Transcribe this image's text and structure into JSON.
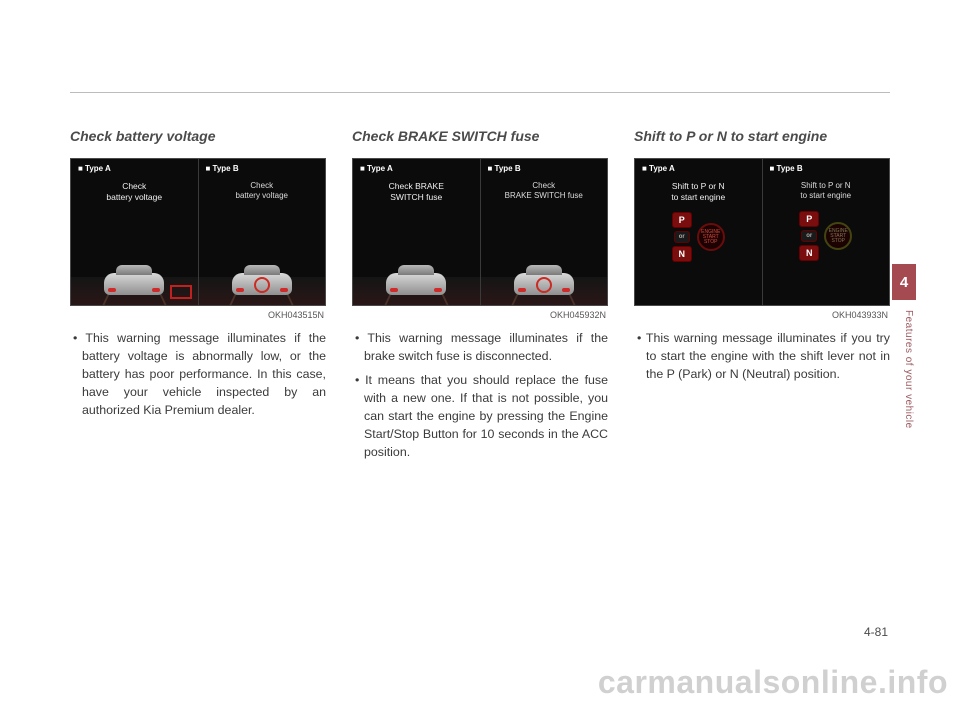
{
  "page": {
    "chapter_tab": "4",
    "side_label": "Features of your vehicle",
    "page_number": "4-81",
    "watermark": "carmanualsonline.info"
  },
  "sections": [
    {
      "heading": "Check battery voltage",
      "image_code": "OKH043515N",
      "type_a_label": "■ Type A",
      "type_b_label": "■ Type B",
      "panel_a_msg": "Check\nbattery voltage",
      "panel_b_msg": "Check\nbattery voltage",
      "paragraphs": [
        "• This warning message illuminates if the battery voltage is abnormally low, or the battery has poor per­formance. In this case, have your vehicle inspected by an authorized Kia Premium dealer."
      ]
    },
    {
      "heading": "Check BRAKE SWITCH fuse",
      "image_code": "OKH045932N",
      "type_a_label": "■ Type A",
      "type_b_label": "■ Type B",
      "panel_a_msg": "Check BRAKE\nSWITCH fuse",
      "panel_b_msg": "Check\nBRAKE SWITCH fuse",
      "paragraphs": [
        "• This warning message illuminates if the brake switch fuse is discon­nected.",
        "• It means that you should replace the fuse with a new one. If that is not possible, you can start the engine by pressing the Engine Start/Stop Button for 10 seconds in the ACC position."
      ]
    },
    {
      "heading": "Shift to P or N to start engine",
      "image_code": "OKH043933N",
      "type_a_label": "■ Type A",
      "type_b_label": "■ Type B",
      "panel_a_msg": "Shift to P or N\nto start engine",
      "panel_b_msg": "Shift to P or N\nto start engine",
      "paragraphs": [
        "• This warning message illuminates if you try to start the engine with the shift lever not in the P (Park) or N (Neutral) position."
      ]
    }
  ],
  "colors": {
    "accent": "#a64a52",
    "ink": "#3a3a3a",
    "rule": "#bcbcbc",
    "taillight": "#d12a2a",
    "warn_border": "#c0201e"
  }
}
